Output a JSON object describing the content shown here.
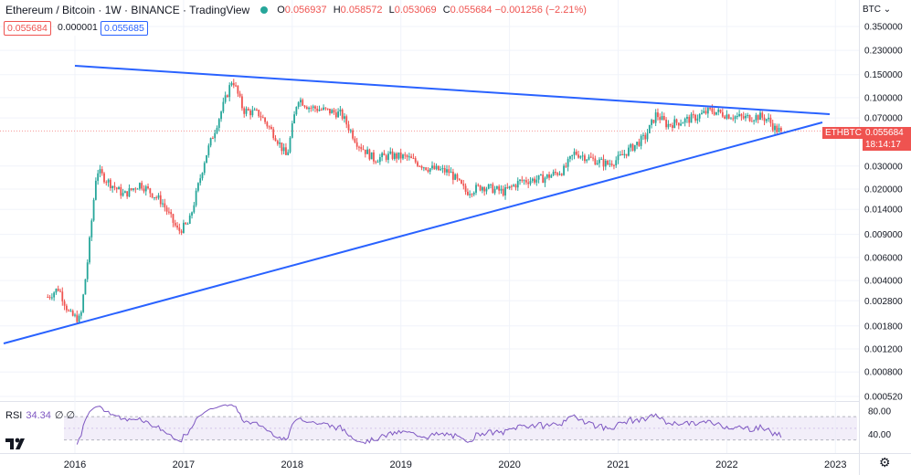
{
  "header": {
    "title": "Ethereum / Bitcoin · 1W · BINANCE · TradingView",
    "ohlc": [
      {
        "key": "O",
        "value": "0.056937"
      },
      {
        "key": "H",
        "value": "0.058572"
      },
      {
        "key": "L",
        "value": "0.053069"
      },
      {
        "key": "C",
        "value": "0.055684 −0.001256 (−2.21%)"
      }
    ]
  },
  "price_boxes": {
    "bid": "0.055684",
    "spread": "0.000001",
    "ask": "0.055685"
  },
  "currency_label": "BTC ⌄",
  "last_price_tag": {
    "symbol": "ETHBTC",
    "price": "0.055684",
    "countdown": "18:14:17"
  },
  "rsi_label": {
    "name": "RSI",
    "value": "34.34",
    "placeholders": "∅ ∅"
  },
  "colors": {
    "up": "#26a69a",
    "down": "#ef5350",
    "trendline": "#2962ff",
    "rsi_line": "#7e57c2",
    "rsi_band": "#ede7f6",
    "grid": "#f0f3fa"
  },
  "icons": {
    "logo": "tradingview-logo-icon",
    "settings": "gear-icon"
  },
  "chart_data": [
    {
      "type": "candlestick",
      "title": "Ethereum / Bitcoin · 1W · BINANCE · TradingView",
      "y_scale": "log",
      "y_ticks": [
        "0.350000",
        "0.230000",
        "0.150000",
        "0.100000",
        "0.070000",
        "0.030000",
        "0.020000",
        "0.014000",
        "0.009000",
        "0.006000",
        "0.004000",
        "0.002800",
        "0.001800",
        "0.001200",
        "0.000800",
        "0.000520"
      ],
      "x_ticks": [
        "2016",
        "2017",
        "2018",
        "2019",
        "2020",
        "2021",
        "2022",
        "2023"
      ],
      "last_close": 0.055684,
      "approx_close_path": [
        {
          "t": 2015.75,
          "v": 0.003
        },
        {
          "t": 2015.85,
          "v": 0.0035
        },
        {
          "t": 2015.95,
          "v": 0.0022
        },
        {
          "t": 2016.05,
          "v": 0.002
        },
        {
          "t": 2016.12,
          "v": 0.006
        },
        {
          "t": 2016.2,
          "v": 0.028
        },
        {
          "t": 2016.3,
          "v": 0.023
        },
        {
          "t": 2016.45,
          "v": 0.018
        },
        {
          "t": 2016.6,
          "v": 0.022
        },
        {
          "t": 2016.8,
          "v": 0.016
        },
        {
          "t": 2016.95,
          "v": 0.0095
        },
        {
          "t": 2017.05,
          "v": 0.011
        },
        {
          "t": 2017.2,
          "v": 0.035
        },
        {
          "t": 2017.35,
          "v": 0.08
        },
        {
          "t": 2017.45,
          "v": 0.14
        },
        {
          "t": 2017.55,
          "v": 0.08
        },
        {
          "t": 2017.7,
          "v": 0.075
        },
        {
          "t": 2017.85,
          "v": 0.05
        },
        {
          "t": 2017.95,
          "v": 0.035
        },
        {
          "t": 2018.05,
          "v": 0.1
        },
        {
          "t": 2018.15,
          "v": 0.085
        },
        {
          "t": 2018.3,
          "v": 0.08
        },
        {
          "t": 2018.45,
          "v": 0.075
        },
        {
          "t": 2018.6,
          "v": 0.045
        },
        {
          "t": 2018.75,
          "v": 0.034
        },
        {
          "t": 2018.9,
          "v": 0.036
        },
        {
          "t": 2019.05,
          "v": 0.035
        },
        {
          "t": 2019.25,
          "v": 0.029
        },
        {
          "t": 2019.45,
          "v": 0.027
        },
        {
          "t": 2019.6,
          "v": 0.019
        },
        {
          "t": 2019.75,
          "v": 0.021
        },
        {
          "t": 2019.95,
          "v": 0.019
        },
        {
          "t": 2020.1,
          "v": 0.023
        },
        {
          "t": 2020.3,
          "v": 0.024
        },
        {
          "t": 2020.5,
          "v": 0.028
        },
        {
          "t": 2020.6,
          "v": 0.038
        },
        {
          "t": 2020.75,
          "v": 0.034
        },
        {
          "t": 2020.9,
          "v": 0.031
        },
        {
          "t": 2021.0,
          "v": 0.034
        },
        {
          "t": 2021.1,
          "v": 0.04
        },
        {
          "t": 2021.25,
          "v": 0.05
        },
        {
          "t": 2021.35,
          "v": 0.075
        },
        {
          "t": 2021.45,
          "v": 0.062
        },
        {
          "t": 2021.55,
          "v": 0.065
        },
        {
          "t": 2021.7,
          "v": 0.07
        },
        {
          "t": 2021.85,
          "v": 0.08
        },
        {
          "t": 2022.0,
          "v": 0.074
        },
        {
          "t": 2022.15,
          "v": 0.07
        },
        {
          "t": 2022.3,
          "v": 0.072
        },
        {
          "t": 2022.38,
          "v": 0.068
        },
        {
          "t": 2022.45,
          "v": 0.057
        },
        {
          "t": 2022.5,
          "v": 0.0557
        }
      ]
    },
    {
      "type": "line",
      "title": "RSI",
      "last_value": 34.34,
      "y_ticks": [
        "80.00",
        "40.00"
      ],
      "band": [
        30,
        70
      ]
    }
  ]
}
